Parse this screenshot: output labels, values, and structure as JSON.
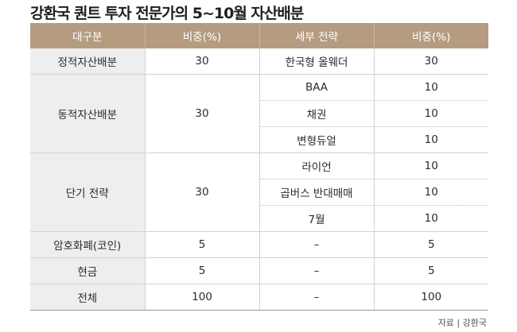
{
  "title": "강환국 퀀트 투자 전문가의 5~10월 자산배분",
  "headers": [
    "대구분",
    "비중(%)",
    "세부 전략",
    "비중(%)"
  ],
  "rows": {
    "static": {
      "category": "정적자산배분",
      "weight": "30",
      "subs": [
        {
          "name": "한국형 올웨더",
          "weight": "30"
        }
      ]
    },
    "dynamic": {
      "category": "동적자산배분",
      "weight": "30",
      "subs": [
        {
          "name": "BAA",
          "weight": "10"
        },
        {
          "name": "채권",
          "weight": "10"
        },
        {
          "name": "변형듀얼",
          "weight": "10"
        }
      ]
    },
    "short": {
      "category": "단기 전략",
      "weight": "30",
      "subs": [
        {
          "name": "라이언",
          "weight": "10"
        },
        {
          "name": "곱버스 반대매매",
          "weight": "10"
        },
        {
          "name": "7월",
          "weight": "10"
        }
      ]
    },
    "crypto": {
      "category": "암호화폐(코인)",
      "weight": "5",
      "sub_name": "–",
      "sub_weight": "5"
    },
    "cash": {
      "category": "현금",
      "weight": "5",
      "sub_name": "–",
      "sub_weight": "5"
    },
    "total": {
      "category": "전체",
      "weight": "100",
      "sub_name": "–",
      "sub_weight": "100"
    }
  },
  "source": "자료 | 강환국"
}
